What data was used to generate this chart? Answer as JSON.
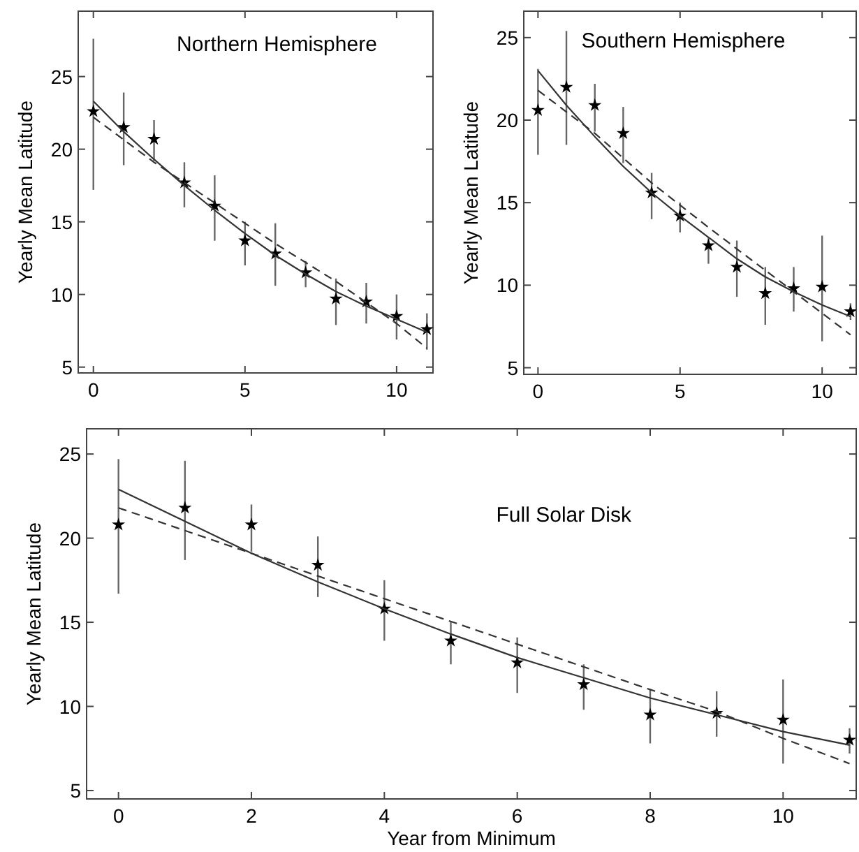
{
  "chart_data": [
    {
      "type": "scatter",
      "title": "Northern Hemisphere",
      "ylabel": "Yearly Mean Latitude",
      "xlim": [
        -0.5,
        11.2
      ],
      "ylim": [
        4.6,
        29.5
      ],
      "xticks": [
        0,
        5,
        10
      ],
      "yticks": [
        5,
        10,
        15,
        20,
        25
      ],
      "grid": false,
      "marker": "star",
      "series": [
        {
          "color": "#000000",
          "x": [
            0,
            1,
            2,
            3,
            4,
            5,
            6,
            7,
            8,
            9,
            10,
            11
          ],
          "values": [
            22.6,
            21.5,
            20.7,
            17.7,
            16.1,
            13.7,
            12.8,
            11.5,
            9.7,
            9.5,
            8.5,
            7.6
          ],
          "errors": [
            [
              17.2,
              27.6
            ],
            [
              18.9,
              23.9
            ],
            [
              19.2,
              22
            ],
            [
              16,
              19.1
            ],
            [
              13.7,
              18.2
            ],
            [
              12,
              15
            ],
            [
              10.6,
              14.9
            ],
            [
              10.5,
              12.3
            ],
            [
              7.9,
              11.1
            ],
            [
              8,
              10.8
            ],
            [
              6.9,
              10
            ],
            [
              6.2,
              8.7
            ]
          ]
        },
        {
          "type": "line",
          "color": "#333333",
          "line_style": "solid",
          "marker": "none",
          "x": [
            0,
            1,
            2,
            3,
            4,
            5,
            6,
            7,
            8,
            9,
            10,
            11
          ],
          "values": [
            23.3,
            21.2,
            19.3,
            17.5,
            15.8,
            14.2,
            12.7,
            11.4,
            10.2,
            9.2,
            8.3,
            7.4
          ]
        },
        {
          "type": "line",
          "color": "#333333",
          "line_style": "dashed",
          "marker": "none",
          "x": [
            0,
            2,
            4,
            6,
            8,
            10,
            11
          ],
          "values": [
            22.2,
            19.1,
            16.3,
            13.5,
            10.9,
            8.0,
            6.3
          ]
        }
      ]
    },
    {
      "type": "scatter",
      "title": "Southern Hemisphere",
      "ylabel": "Yearly Mean Latitude",
      "xlim": [
        -0.5,
        11.2
      ],
      "ylim": [
        4.6,
        26.6
      ],
      "xticks": [
        0,
        5,
        10
      ],
      "yticks": [
        5,
        10,
        15,
        20,
        25
      ],
      "grid": false,
      "marker": "star",
      "series": [
        {
          "color": "#000000",
          "x": [
            0,
            1,
            2,
            3,
            4,
            5,
            6,
            7,
            8,
            9,
            10,
            11
          ],
          "values": [
            20.6,
            22.0,
            20.9,
            19.2,
            15.6,
            14.2,
            12.4,
            11.1,
            9.5,
            9.8,
            9.9,
            8.4
          ],
          "errors": [
            [
              17.9,
              23.1
            ],
            [
              18.5,
              25.4
            ],
            [
              19.3,
              22.2
            ],
            [
              17.4,
              20.8
            ],
            [
              14,
              16.8
            ],
            [
              13.2,
              15
            ],
            [
              11.3,
              12.9
            ],
            [
              9.3,
              12.7
            ],
            [
              7.6,
              11.1
            ],
            [
              8.4,
              11.1
            ],
            [
              6.6,
              13
            ],
            [
              7.9,
              8.9
            ]
          ]
        },
        {
          "type": "line",
          "color": "#333333",
          "line_style": "solid",
          "marker": "none",
          "x": [
            0,
            1,
            2,
            3,
            4,
            5,
            6,
            7,
            8,
            9,
            10,
            11
          ],
          "values": [
            23.0,
            20.9,
            19.0,
            17.2,
            15.6,
            14.2,
            12.9,
            11.6,
            10.5,
            9.6,
            8.8,
            8.1
          ]
        },
        {
          "type": "line",
          "color": "#333333",
          "line_style": "dashed",
          "marker": "none",
          "x": [
            0,
            2,
            4,
            6,
            8,
            10,
            11
          ],
          "values": [
            21.8,
            19.2,
            16.2,
            13.5,
            10.9,
            8.3,
            7.0
          ]
        }
      ]
    },
    {
      "type": "scatter",
      "title": "Full Solar Disk",
      "xlabel": "Year from Minimum",
      "ylabel": "Yearly Mean Latitude",
      "xlim": [
        -0.48,
        11.1
      ],
      "ylim": [
        4.5,
        26.5
      ],
      "xticks": [
        0,
        2,
        4,
        6,
        8,
        10
      ],
      "yticks": [
        5,
        10,
        15,
        20,
        25
      ],
      "grid": false,
      "marker": "star",
      "series": [
        {
          "color": "#000000",
          "x": [
            0,
            1,
            2,
            3,
            4,
            5,
            6,
            7,
            8,
            9,
            10,
            11
          ],
          "values": [
            20.8,
            21.8,
            20.8,
            18.4,
            15.8,
            13.9,
            12.6,
            11.3,
            9.5,
            9.6,
            9.2,
            8.0
          ],
          "errors": [
            [
              16.7,
              24.7
            ],
            [
              18.7,
              24.6
            ],
            [
              19.2,
              22
            ],
            [
              16.5,
              20.1
            ],
            [
              13.9,
              17.5
            ],
            [
              12.5,
              15
            ],
            [
              10.8,
              14.1
            ],
            [
              9.8,
              12.5
            ],
            [
              7.8,
              11
            ],
            [
              8.2,
              10.9
            ],
            [
              6.6,
              11.6
            ],
            [
              7.2,
              8.7
            ]
          ]
        },
        {
          "type": "line",
          "color": "#333333",
          "line_style": "solid",
          "marker": "none",
          "x": [
            0,
            1,
            2,
            3,
            4,
            5,
            6,
            7,
            8,
            9,
            10,
            11
          ],
          "values": [
            22.9,
            21.0,
            19.1,
            17.4,
            15.8,
            14.3,
            12.9,
            11.7,
            10.5,
            9.5,
            8.5,
            7.7
          ]
        },
        {
          "type": "line",
          "color": "#333333",
          "line_style": "dashed",
          "marker": "none",
          "x": [
            0,
            2,
            4,
            6,
            8,
            9,
            10,
            11
          ],
          "values": [
            21.8,
            19.1,
            16.4,
            13.7,
            11.0,
            9.7,
            8.1,
            6.6
          ]
        }
      ]
    }
  ]
}
